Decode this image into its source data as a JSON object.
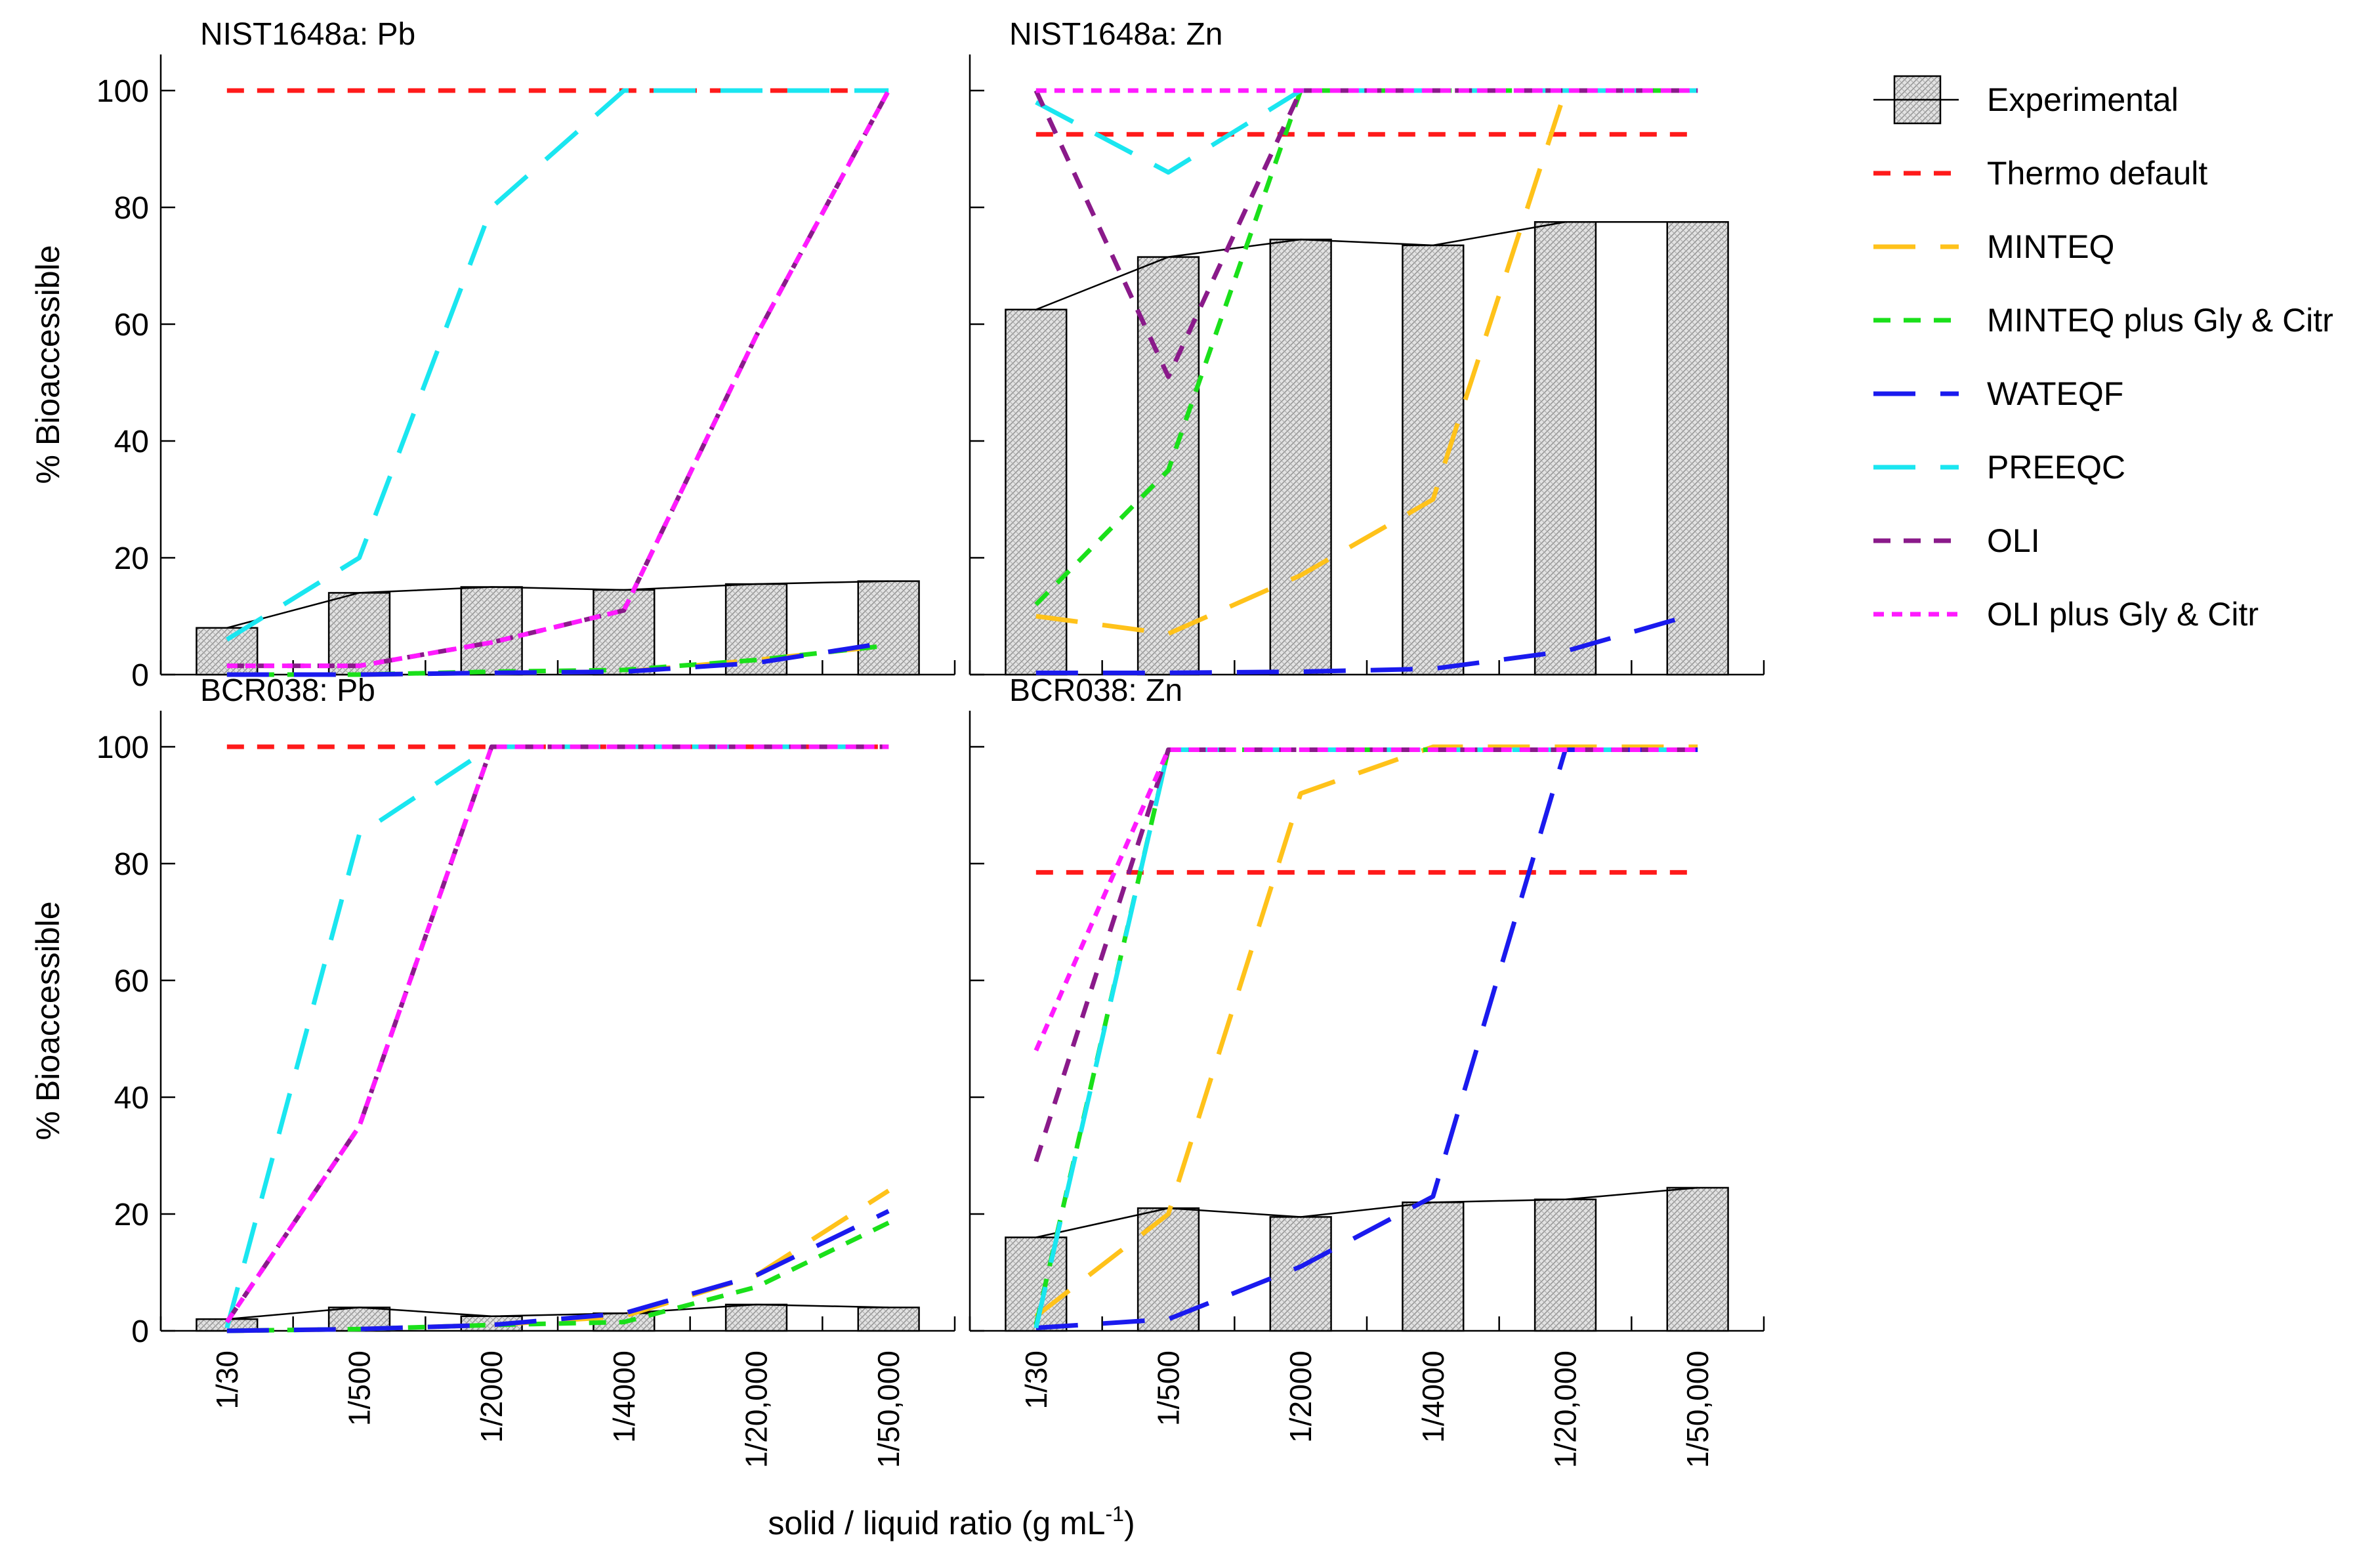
{
  "xlabel": "solid / liquid ratio (g mL",
  "xlabel_sup": "-1",
  "xlabel_close": ")",
  "ylabel": "% Bioaccessible",
  "categories": [
    "1/30",
    "1/500",
    "1/2000",
    "1/4000",
    "1/20,000",
    "1/50,000"
  ],
  "y_ticks": [
    0,
    20,
    40,
    60,
    80,
    100
  ],
  "legend": [
    {
      "name": "Experimental",
      "kind": "bar"
    },
    {
      "name": "Thermo default",
      "color": "#ff1a1a",
      "dash": "short"
    },
    {
      "name": "MINTEQ",
      "color": "#ffc21a",
      "dash": "long"
    },
    {
      "name": "MINTEQ plus Gly & Citr",
      "color": "#1ae01a",
      "dash": "short"
    },
    {
      "name": "WATEQF",
      "color": "#1a1aee",
      "dash": "long"
    },
    {
      "name": "PREEQC",
      "color": "#1ae6f0",
      "dash": "long"
    },
    {
      "name": "OLI",
      "color": "#8a1a8a",
      "dash": "short"
    },
    {
      "name": "OLI plus Gly & Citr",
      "color": "#ff1aff",
      "dash": "dot"
    }
  ],
  "chart_data": [
    {
      "type": "bar",
      "title": "NIST1648a: Pb",
      "ylim": [
        0,
        100
      ],
      "categories": [
        "1/30",
        "1/500",
        "1/2000",
        "1/4000",
        "1/20,000",
        "1/50,000"
      ],
      "experimental": [
        8,
        14,
        15,
        14.5,
        15.5,
        16
      ],
      "series": [
        {
          "name": "Thermo default",
          "values": [
            100,
            100,
            100,
            100,
            100,
            100
          ]
        },
        {
          "name": "MINTEQ",
          "values": [
            0,
            0,
            0.3,
            0.5,
            2.5,
            5
          ]
        },
        {
          "name": "MINTEQ plus Gly & Citr",
          "values": [
            0,
            0,
            0.5,
            0.8,
            2.5,
            5
          ]
        },
        {
          "name": "WATEQF",
          "values": [
            0,
            0,
            0.3,
            0.5,
            2,
            5.5
          ]
        },
        {
          "name": "PREEQC",
          "values": [
            6,
            20,
            80,
            100,
            100,
            100
          ]
        },
        {
          "name": "OLI",
          "values": [
            1.5,
            1.5,
            5.5,
            11,
            58,
            100
          ]
        },
        {
          "name": "OLI plus Gly & Citr",
          "values": [
            1.5,
            1.5,
            5.5,
            11,
            58,
            100
          ]
        }
      ]
    },
    {
      "type": "bar",
      "title": "NIST1648a: Zn",
      "ylim": [
        0,
        100
      ],
      "categories": [
        "1/30",
        "1/500",
        "1/2000",
        "1/4000",
        "1/20,000",
        "1/50,000"
      ],
      "experimental": [
        62.5,
        71.5,
        74.5,
        73.5,
        77.5,
        77.5
      ],
      "series": [
        {
          "name": "Thermo default",
          "values": [
            92.5,
            92.5,
            92.5,
            92.5,
            92.5,
            92.5
          ]
        },
        {
          "name": "MINTEQ",
          "values": [
            10,
            7,
            17,
            30,
            100,
            100
          ]
        },
        {
          "name": "MINTEQ plus Gly & Citr",
          "values": [
            12,
            35,
            100,
            100,
            100,
            100
          ]
        },
        {
          "name": "WATEQF",
          "values": [
            0.3,
            0.3,
            0.5,
            1,
            4,
            10.5
          ]
        },
        {
          "name": "PREEQC",
          "values": [
            98,
            86,
            100,
            100,
            100,
            100
          ]
        },
        {
          "name": "OLI",
          "values": [
            100,
            51,
            100,
            100,
            100,
            100
          ]
        },
        {
          "name": "OLI plus Gly & Citr",
          "values": [
            100,
            100,
            100,
            100,
            100,
            100
          ]
        }
      ]
    },
    {
      "type": "bar",
      "title": "BCR038: Pb",
      "ylim": [
        0,
        100
      ],
      "categories": [
        "1/30",
        "1/500",
        "1/2000",
        "1/4000",
        "1/20,000",
        "1/50,000"
      ],
      "experimental": [
        2,
        4,
        2.5,
        3,
        4.5,
        4
      ],
      "series": [
        {
          "name": "Thermo default",
          "values": [
            100,
            100,
            100,
            100,
            100,
            100
          ]
        },
        {
          "name": "MINTEQ",
          "values": [
            0,
            0.3,
            1,
            2.5,
            9.5,
            24
          ]
        },
        {
          "name": "MINTEQ plus Gly & Citr",
          "values": [
            0,
            0.3,
            1,
            1.5,
            7.5,
            18.5
          ]
        },
        {
          "name": "WATEQF",
          "values": [
            0,
            0.3,
            1,
            3,
            9.5,
            20.5
          ]
        },
        {
          "name": "PREEQC",
          "values": [
            0.5,
            85,
            100,
            100,
            100,
            100
          ]
        },
        {
          "name": "OLI",
          "values": [
            1.5,
            35,
            100,
            100,
            100,
            100
          ]
        },
        {
          "name": "OLI plus Gly & Citr",
          "values": [
            1.5,
            35,
            100,
            100,
            100,
            100
          ]
        }
      ]
    },
    {
      "type": "bar",
      "title": "BCR038: Zn",
      "ylim": [
        0,
        100
      ],
      "categories": [
        "1/30",
        "1/500",
        "1/2000",
        "1/4000",
        "1/20,000",
        "1/50,000"
      ],
      "experimental": [
        16,
        21,
        19.5,
        22,
        22.5,
        24.5
      ],
      "series": [
        {
          "name": "Thermo default",
          "values": [
            78.5,
            78.5,
            78.5,
            78.5,
            78.5,
            78.5
          ]
        },
        {
          "name": "MINTEQ",
          "values": [
            2.5,
            20,
            92,
            100,
            100,
            100
          ]
        },
        {
          "name": "MINTEQ plus Gly & Citr",
          "values": [
            1,
            99.5,
            99.5,
            99.5,
            99.5,
            99.5
          ]
        },
        {
          "name": "WATEQF",
          "values": [
            0.5,
            2,
            11,
            23,
            99.5,
            99.5
          ]
        },
        {
          "name": "PREEQC",
          "values": [
            0.5,
            99.5,
            99.5,
            99.5,
            99.5,
            99.5
          ]
        },
        {
          "name": "OLI",
          "values": [
            29,
            99.5,
            99.5,
            99.5,
            99.5,
            99.5
          ]
        },
        {
          "name": "OLI plus Gly & Citr",
          "values": [
            48,
            99.5,
            99.5,
            99.5,
            99.5,
            99.5
          ]
        }
      ]
    }
  ]
}
